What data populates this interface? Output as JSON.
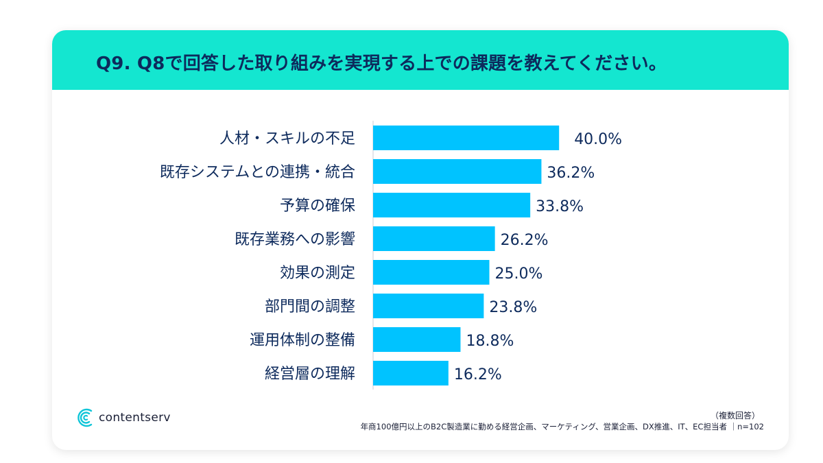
{
  "title": "Q9. Q8で回答した取り組みを実現する上での課題を教えてください。",
  "colors": {
    "header": "#14e6d0",
    "bar": "#00c3ff",
    "text": "#0d2a5c"
  },
  "chart_data": {
    "type": "bar",
    "orientation": "horizontal",
    "categories": [
      "人材・スキルの不足",
      "既存システムとの連携・統合",
      "予算の確保",
      "既存業務への影響",
      "効果の測定",
      "部門間の調整",
      "運用体制の整備",
      "経営層の理解"
    ],
    "values": [
      40.0,
      36.2,
      33.8,
      26.2,
      25.0,
      23.8,
      18.8,
      16.2
    ],
    "value_labels": [
      "40.0%",
      "36.2%",
      "33.8%",
      "26.2%",
      "25.0%",
      "23.8%",
      "18.8%",
      "16.2%"
    ],
    "unit": "%",
    "xlim": [
      0,
      100
    ],
    "grid": false,
    "legend": "none"
  },
  "footer": {
    "brand": "contentserv",
    "brand_icon": "contentserv-logo-icon",
    "note_multi": "（複数回答）",
    "note_sample": "年商100億円以上のB2C製造業に勤める経営企画、マーケティング、営業企画、DX推進、IT、EC担当者 ｜n=102"
  }
}
